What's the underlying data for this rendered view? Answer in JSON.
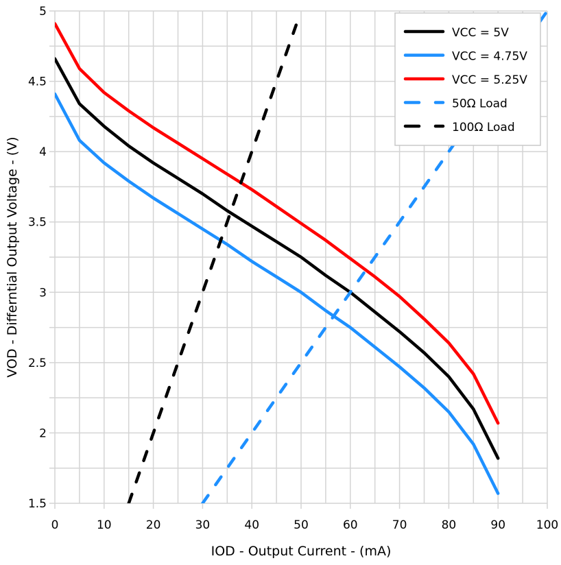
{
  "chart_data": {
    "type": "line",
    "title": "",
    "xlabel": "IOD - Output Current - (mA)",
    "ylabel": "VOD - Differntial Output Voltage - (V)",
    "xlim": [
      0,
      100
    ],
    "ylim": [
      1.5,
      5
    ],
    "xticks": [
      "0",
      "10",
      "20",
      "30",
      "40",
      "50",
      "60",
      "70",
      "80",
      "90",
      "100"
    ],
    "yticks": [
      "1.5",
      "2",
      "2.5",
      "3",
      "3.5",
      "4",
      "4.5",
      "5"
    ],
    "grid": true,
    "legend_position": "top-right",
    "x": [
      0,
      5,
      10,
      15,
      20,
      25,
      30,
      35,
      40,
      45,
      50,
      55,
      60,
      65,
      70,
      75,
      80,
      85,
      90
    ],
    "series": [
      {
        "name": "VCC = 5V",
        "color": "#000000",
        "dashed": false,
        "values": [
          4.66,
          4.34,
          4.18,
          4.04,
          3.92,
          3.81,
          3.7,
          3.58,
          3.47,
          3.36,
          3.25,
          3.12,
          3.0,
          2.86,
          2.72,
          2.57,
          2.4,
          2.17,
          1.82
        ]
      },
      {
        "name": "VCC = 4.75V",
        "color": "#1E90FF",
        "dashed": false,
        "values": [
          4.41,
          4.08,
          3.92,
          3.79,
          3.67,
          3.56,
          3.45,
          3.34,
          3.22,
          3.11,
          3.0,
          2.87,
          2.75,
          2.61,
          2.47,
          2.32,
          2.15,
          1.92,
          1.57
        ]
      },
      {
        "name": "VCC = 5.25V",
        "color": "#FF0000",
        "dashed": false,
        "values": [
          4.91,
          4.59,
          4.42,
          4.29,
          4.17,
          4.06,
          3.95,
          3.84,
          3.73,
          3.61,
          3.49,
          3.37,
          3.24,
          3.11,
          2.97,
          2.81,
          2.64,
          2.42,
          2.07
        ]
      },
      {
        "name": "50Ω Load",
        "color": "#1E90FF",
        "dashed": true,
        "points": [
          [
            30,
            1.5
          ],
          [
            100,
            5.0
          ]
        ]
      },
      {
        "name": "100Ω Load",
        "color": "#000000",
        "dashed": true,
        "points": [
          [
            15,
            1.5
          ],
          [
            49,
            4.9
          ]
        ]
      }
    ]
  }
}
